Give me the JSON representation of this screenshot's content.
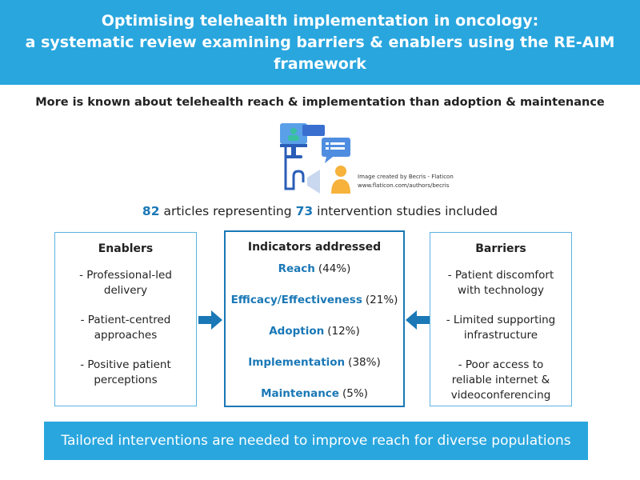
{
  "header": {
    "title_lines": [
      "Optimising telehealth implementation in oncology:",
      "a systematic review examining barriers & enablers using the RE-AIM",
      "framework"
    ]
  },
  "subtitle": "More is known about telehealth reach & implementation than adoption & maintenance",
  "image_credit": [
    "Image created by Becris - Flaticon",
    "www.flaticon.com/authors/becris"
  ],
  "summary": {
    "articles": 82,
    "articles_text": "articles representing",
    "studies": 73,
    "studies_text": "intervention studies included"
  },
  "enablers": {
    "title": "Enablers",
    "items": [
      "- Professional-led delivery",
      "- Patient-centred approaches",
      "- Positive patient perceptions"
    ]
  },
  "indicators": {
    "title": "Indicators addressed",
    "items": [
      {
        "name": "Reach",
        "share": "(44%)"
      },
      {
        "name": "Efficacy/Effectiveness",
        "share": "(21%)"
      },
      {
        "name": "Adoption",
        "share": "(12%)"
      },
      {
        "name": "Implementation",
        "share": "(38%)"
      },
      {
        "name": "Maintenance",
        "share": "(5%)"
      }
    ]
  },
  "barriers": {
    "title": "Barriers",
    "items": [
      "- Patient discomfort with technology",
      "- Limited supporting infrastructure",
      "- Poor access to reliable internet & videoconferencing"
    ]
  },
  "footer": "Tailored interventions are needed to improve reach for diverse populations"
}
